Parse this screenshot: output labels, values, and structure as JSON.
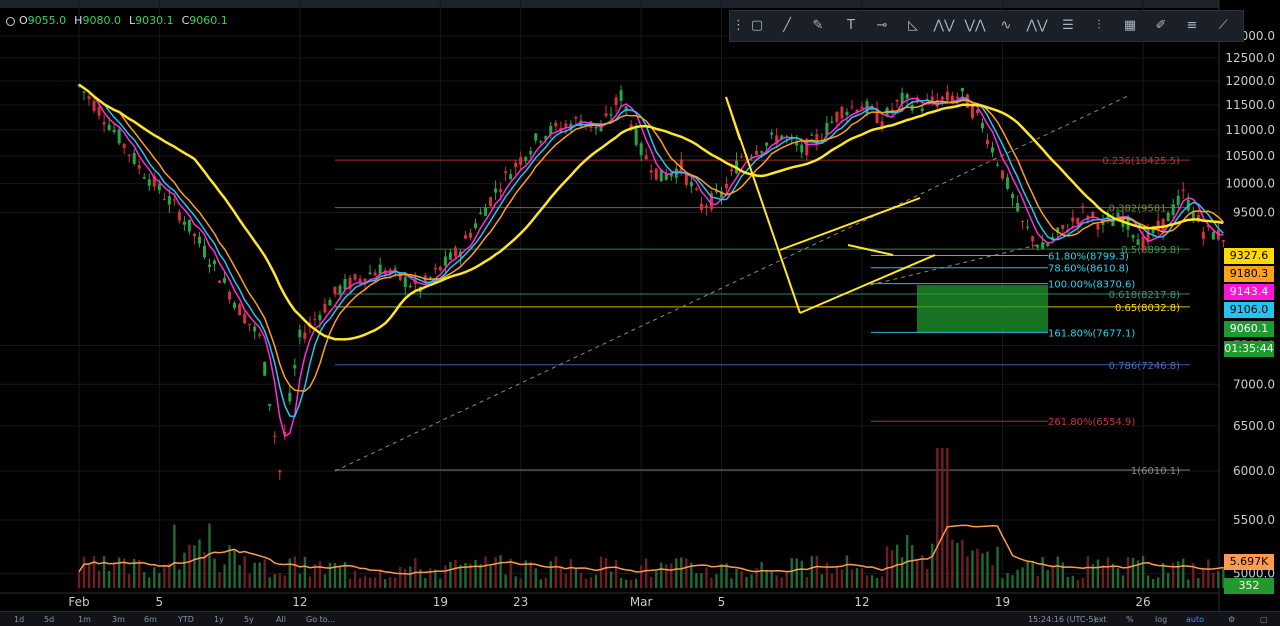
{
  "ohlc": {
    "open_label": "O",
    "open": "9055.0",
    "high_label": "H",
    "high": "9080.0",
    "low_label": "L",
    "low": "9030.1",
    "close_label": "C",
    "close": "9060.1"
  },
  "toolbar_icons": [
    "rectangle-icon",
    "line-icon",
    "brush-icon",
    "text-icon",
    "horizontal-line-icon",
    "triangle-icon",
    "pattern-icon",
    "pattern-icon",
    "pattern-icon",
    "pattern-icon",
    "gann-icon",
    "fib-icon",
    "fib-icon",
    "brush-icon",
    "list-icon",
    "magnet-icon"
  ],
  "price_labels": [
    {
      "text": "9327.6",
      "bg": "#ffd800",
      "color": "#000"
    },
    {
      "text": "9180.3",
      "bg": "#ff9f1c",
      "color": "#000"
    },
    {
      "text": "9143.4",
      "bg": "#ff14d8",
      "color": "#fff"
    },
    {
      "text": "9106.0",
      "bg": "#25c4f0",
      "color": "#000"
    },
    {
      "text": "9060.1",
      "bg": "#1f9a2e",
      "color": "#fff"
    },
    {
      "text": "01:35:44",
      "bg": "#1f9a2e",
      "color": "#fff"
    }
  ],
  "volume_label": {
    "text": "5.697K",
    "bg": "#ff9a50",
    "color": "#000"
  },
  "volume_label2": {
    "text": "352",
    "bg": "#1f9a2e",
    "color": "#fff"
  },
  "bottom_bar": {
    "ranges": [
      "1d",
      "5d",
      "1m",
      "3m",
      "6m",
      "YTD",
      "1y",
      "5y",
      "All",
      "Go to..."
    ],
    "time": "15:24:16 (UTC-5)",
    "opts": [
      "ext",
      "%",
      "log",
      "auto"
    ]
  },
  "chart_data": {
    "type": "candlestick",
    "y_ticks": [
      {
        "v": 13000,
        "t": "13000.0"
      },
      {
        "v": 12500,
        "t": "12500.0"
      },
      {
        "v": 12000,
        "t": "12000.0"
      },
      {
        "v": 11500,
        "t": "11500.0"
      },
      {
        "v": 11000,
        "t": "11000.0"
      },
      {
        "v": 10500,
        "t": "10500.0"
      },
      {
        "v": 10000,
        "t": "10000.0"
      },
      {
        "v": 9500,
        "t": "9500.0"
      },
      {
        "v": 7500,
        "t": "7500.0"
      },
      {
        "v": 7000,
        "t": "7000.0"
      },
      {
        "v": 6500,
        "t": "6500.0"
      },
      {
        "v": 6000,
        "t": "6000.0"
      },
      {
        "v": 5500,
        "t": "5500.0"
      },
      {
        "v": 5000,
        "t": "5000.0"
      }
    ],
    "x_ticks": [
      "Feb",
      "5",
      "12",
      "19",
      "23",
      "Mar",
      "5",
      "12",
      "19",
      "26"
    ],
    "x_tick_days": [
      1,
      5,
      12,
      19,
      23,
      29,
      33,
      40,
      47,
      54
    ],
    "price_path": [
      [
        0,
        11900
      ],
      [
        1,
        11400
      ],
      [
        3,
        10300
      ],
      [
        5,
        9500
      ],
      [
        8,
        8000
      ],
      [
        9,
        7600
      ],
      [
        10,
        6000
      ],
      [
        11,
        7600
      ],
      [
        13,
        8300
      ],
      [
        15,
        8600
      ],
      [
        17,
        8300
      ],
      [
        19,
        8900
      ],
      [
        21,
        10000
      ],
      [
        23,
        10900
      ],
      [
        25,
        11200
      ],
      [
        26,
        11000
      ],
      [
        27,
        11700
      ],
      [
        28,
        10600
      ],
      [
        29,
        10100
      ],
      [
        30,
        10300
      ],
      [
        31,
        9600
      ],
      [
        32,
        9800
      ],
      [
        33,
        10500
      ],
      [
        35,
        10900
      ],
      [
        36,
        10600
      ],
      [
        37,
        10900
      ],
      [
        38,
        11400
      ],
      [
        39,
        11500
      ],
      [
        40,
        11200
      ],
      [
        41,
        11600
      ],
      [
        42,
        11500
      ],
      [
        43,
        11600
      ],
      [
        44,
        11700
      ],
      [
        45,
        11100
      ],
      [
        46,
        10200
      ],
      [
        47,
        9300
      ],
      [
        48,
        8900
      ],
      [
        49,
        9200
      ],
      [
        50,
        9500
      ],
      [
        51,
        9300
      ],
      [
        52,
        9400
      ],
      [
        53,
        9000
      ],
      [
        54,
        9300
      ],
      [
        55,
        9800
      ],
      [
        56,
        9200
      ],
      [
        57,
        9100
      ]
    ],
    "fib_retracement": [
      {
        "level": "0.236",
        "price": 10425.5,
        "label": "0.236(10425.5)",
        "color": "#b53a3a"
      },
      {
        "level": "0.382",
        "price": 9581.7,
        "label": "0.382(9581.7)",
        "color": "#7c8a2a"
      },
      {
        "level": "0.5",
        "price": 8899.8,
        "label": "0.5(8899.8)",
        "color": "#3a9a4a"
      },
      {
        "level": "0.618",
        "price": 8217.8,
        "label": "0.618(8217.8)",
        "color": "#3a9a7a"
      },
      {
        "level": "0.65",
        "price": 8032.8,
        "label": "0.65(8032.8)",
        "color": "#ffd800"
      },
      {
        "level": "0.786",
        "price": 7246.8,
        "label": "0.786(7246.8)",
        "color": "#4a6ac0"
      },
      {
        "level": "1",
        "price": 6010.1,
        "label": "1(6010.1)",
        "color": "#8a8a8a"
      }
    ],
    "fib_extension": [
      {
        "level": "61.80%",
        "price": 8799.3,
        "label": "61.80%(8799.3)",
        "color": "#2ad4f0"
      },
      {
        "level": "78.60%",
        "price": 8610.8,
        "label": "78.60%(8610.8)",
        "color": "#2ad4f0"
      },
      {
        "level": "100.00%",
        "price": 8370.6,
        "label": "100.00%(8370.6)",
        "color": "#2ad4f0"
      },
      {
        "level": "161.80%",
        "price": 7677.1,
        "label": "161.80%(7677.1)",
        "color": "#2ad4f0"
      },
      {
        "level": "261.80%",
        "price": 6554.9,
        "label": "261.80%(6554.9)",
        "color": "#c03a3a"
      }
    ],
    "target_zone": {
      "top": 8350,
      "bottom": 7680,
      "color": "#1f9a2e"
    },
    "grid": true,
    "log_scale": true
  }
}
